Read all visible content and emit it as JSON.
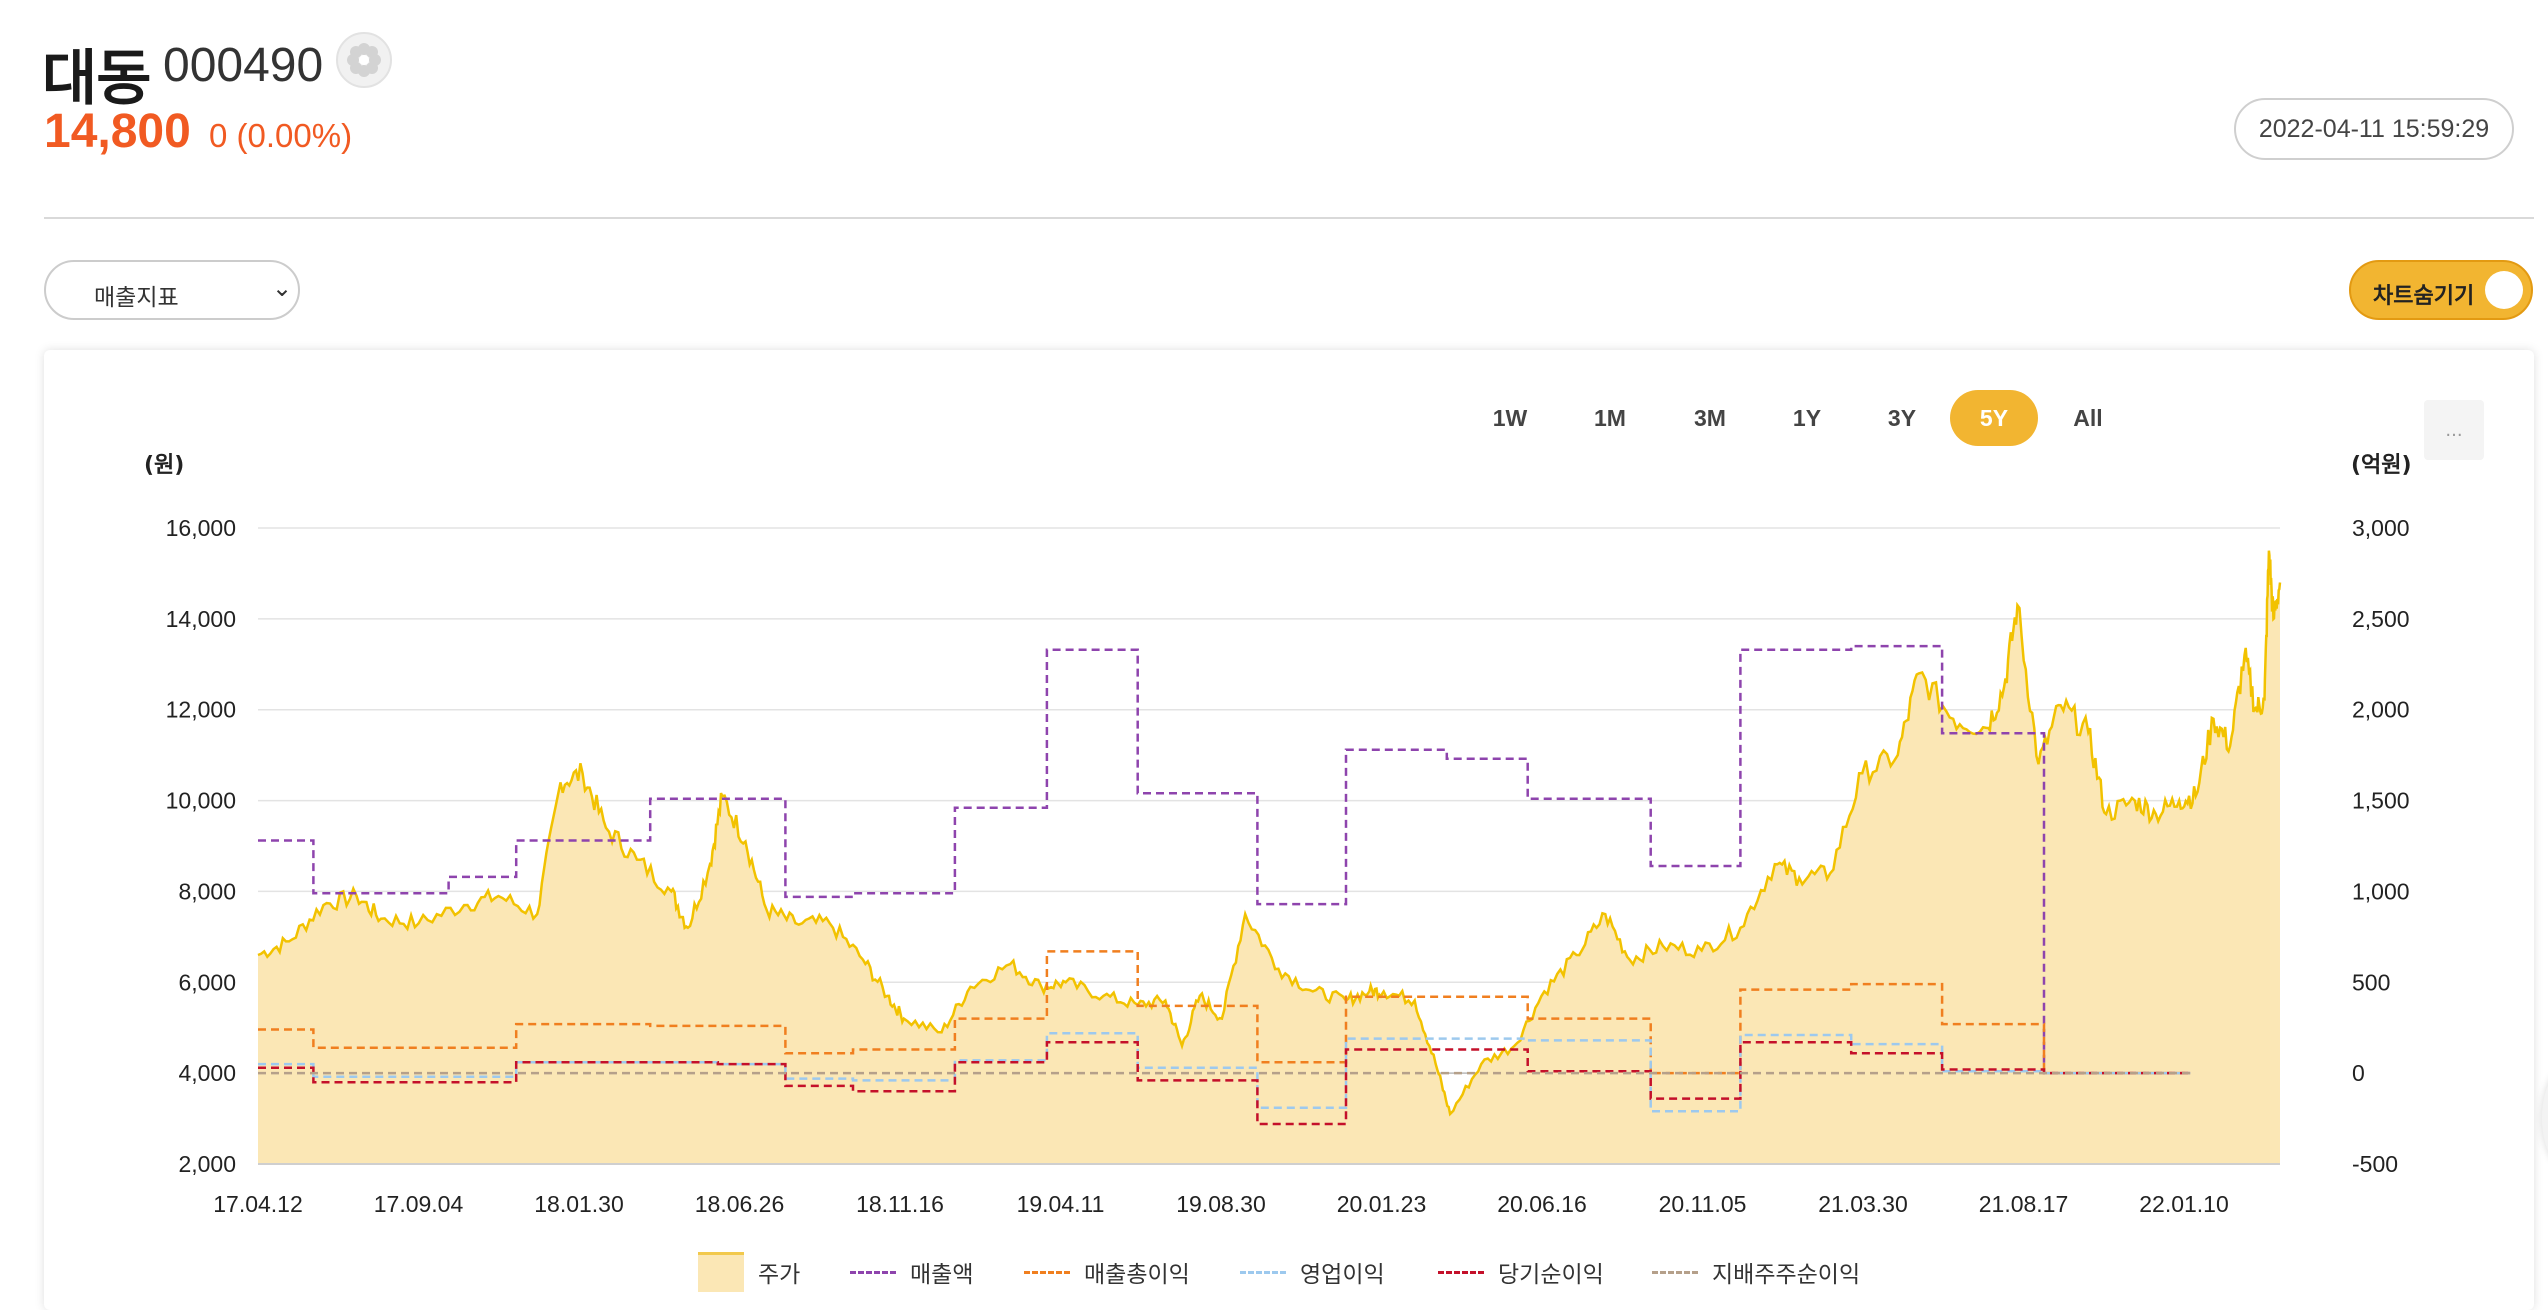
{
  "header": {
    "name": "대동",
    "code": "000490",
    "price": "14,800",
    "change": "0 (0.00%)",
    "timestamp": "2022-04-11 15:59:29"
  },
  "controls": {
    "metric_select": "매출지표",
    "toggle_label": "차트숨기기",
    "ranges": [
      "1W",
      "1M",
      "3M",
      "1Y",
      "3Y",
      "5Y",
      "All"
    ],
    "active_range": "5Y",
    "more_label": "..."
  },
  "colors": {
    "price_line": "#f2c200",
    "price_fill": "#fbe7b5",
    "revenue": "#8e44ad",
    "gross_profit": "#f07f1f",
    "operating_income": "#9dc9ee",
    "net_income": "#c4102a",
    "controlling_net_income": "#b5a08a",
    "accent": "#f2b531",
    "price_text": "#f15a22"
  },
  "chart_data": {
    "type": "line",
    "left_unit": "(원)",
    "right_unit": "(억원)",
    "y_left": {
      "ticks": [
        2000,
        4000,
        6000,
        8000,
        10000,
        12000,
        14000,
        16000
      ],
      "tick_labels": [
        "2,000",
        "4,000",
        "6,000",
        "8,000",
        "10,000",
        "12,000",
        "14,000",
        "16,000"
      ],
      "range": [
        2000,
        16000
      ]
    },
    "y_right": {
      "ticks": [
        -500,
        0,
        500,
        1000,
        1500,
        2000,
        2500,
        3000
      ],
      "tick_labels": [
        "-500",
        "0",
        "500",
        "1,000",
        "1,500",
        "2,000",
        "2,500",
        "3,000"
      ],
      "range": [
        -500,
        3000
      ]
    },
    "x_tick_labels": [
      "17.04.12",
      "17.09.04",
      "18.01.30",
      "18.06.26",
      "18.11.16",
      "19.04.11",
      "19.08.30",
      "20.01.23",
      "20.06.16",
      "20.11.05",
      "21.03.30",
      "21.08.17",
      "22.01.10"
    ],
    "x_range": [
      "2017-04-12",
      "2022-04-11"
    ],
    "legend": [
      "주가",
      "매출액",
      "매출총이익",
      "영업이익",
      "당기순이익",
      "지배주주순이익"
    ],
    "price_series": {
      "name": "주가",
      "points": [
        [
          "2017-04-12",
          6600
        ],
        [
          "2017-05-10",
          6900
        ],
        [
          "2017-06-10",
          7700
        ],
        [
          "2017-07-10",
          7900
        ],
        [
          "2017-08-01",
          7400
        ],
        [
          "2017-09-04",
          7300
        ],
        [
          "2017-10-15",
          7700
        ],
        [
          "2017-11-15",
          7900
        ],
        [
          "2017-12-20",
          7500
        ],
        [
          "2018-01-10",
          10400
        ],
        [
          "2018-01-30",
          10600
        ],
        [
          "2018-02-20",
          9400
        ],
        [
          "2018-03-20",
          8700
        ],
        [
          "2018-04-20",
          8000
        ],
        [
          "2018-05-05",
          7200
        ],
        [
          "2018-05-25",
          8600
        ],
        [
          "2018-06-05",
          10100
        ],
        [
          "2018-06-26",
          9100
        ],
        [
          "2018-07-15",
          7600
        ],
        [
          "2018-08-10",
          7300
        ],
        [
          "2018-09-10",
          7300
        ],
        [
          "2018-10-10",
          6500
        ],
        [
          "2018-11-01",
          5700
        ],
        [
          "2018-11-16",
          5200
        ],
        [
          "2018-12-20",
          4900
        ],
        [
          "2019-01-15",
          5900
        ],
        [
          "2019-02-20",
          6400
        ],
        [
          "2019-03-20",
          5900
        ],
        [
          "2019-04-11",
          6000
        ],
        [
          "2019-05-15",
          5700
        ],
        [
          "2019-06-15",
          5500
        ],
        [
          "2019-07-10",
          5600
        ],
        [
          "2019-07-25",
          4600
        ],
        [
          "2019-08-10",
          5700
        ],
        [
          "2019-08-30",
          5200
        ],
        [
          "2019-09-20",
          7500
        ],
        [
          "2019-10-20",
          6300
        ],
        [
          "2019-11-20",
          5800
        ],
        [
          "2019-12-20",
          5600
        ],
        [
          "2020-01-10",
          5800
        ],
        [
          "2020-01-23",
          5800
        ],
        [
          "2020-02-20",
          5600
        ],
        [
          "2020-03-10",
          4200
        ],
        [
          "2020-03-23",
          3100
        ],
        [
          "2020-04-20",
          4200
        ],
        [
          "2020-05-20",
          4600
        ],
        [
          "2020-06-16",
          5800
        ],
        [
          "2020-07-15",
          6600
        ],
        [
          "2020-08-10",
          7500
        ],
        [
          "2020-09-01",
          6500
        ],
        [
          "2020-10-01",
          6800
        ],
        [
          "2020-11-05",
          6700
        ],
        [
          "2020-12-10",
          7200
        ],
        [
          "2021-01-10",
          8600
        ],
        [
          "2021-02-01",
          8300
        ],
        [
          "2021-03-01",
          8400
        ],
        [
          "2021-03-30",
          10600
        ],
        [
          "2021-05-01",
          11000
        ],
        [
          "2021-05-20",
          12800
        ],
        [
          "2021-06-20",
          11800
        ],
        [
          "2021-07-20",
          11600
        ],
        [
          "2021-08-05",
          12500
        ],
        [
          "2021-08-17",
          14300
        ],
        [
          "2021-09-05",
          10800
        ],
        [
          "2021-09-25",
          12100
        ],
        [
          "2021-10-20",
          11500
        ],
        [
          "2021-11-05",
          9700
        ],
        [
          "2021-12-01",
          10000
        ],
        [
          "2021-12-20",
          9700
        ],
        [
          "2022-01-10",
          10000
        ],
        [
          "2022-01-25",
          10100
        ],
        [
          "2022-02-10",
          11800
        ],
        [
          "2022-02-25",
          11200
        ],
        [
          "2022-03-10",
          13200
        ],
        [
          "2022-03-20",
          12000
        ],
        [
          "2022-03-28",
          12200
        ],
        [
          "2022-04-01",
          15500
        ],
        [
          "2022-04-05",
          14000
        ],
        [
          "2022-04-11",
          14800
        ]
      ]
    },
    "step_series": [
      {
        "name": "매출액",
        "key": "revenue",
        "steps": [
          [
            "2017-04-12",
            1280
          ],
          [
            "2017-06-01",
            990
          ],
          [
            "2017-08-01",
            990
          ],
          [
            "2017-10-01",
            1080
          ],
          [
            "2017-12-01",
            1280
          ],
          [
            "2018-02-01",
            1280
          ],
          [
            "2018-04-01",
            1510
          ],
          [
            "2018-06-01",
            1510
          ],
          [
            "2018-08-01",
            970
          ],
          [
            "2018-10-01",
            990
          ],
          [
            "2019-01-01",
            1460
          ],
          [
            "2019-03-25",
            2330
          ],
          [
            "2019-06-15",
            1540
          ],
          [
            "2019-10-01",
            930
          ],
          [
            "2019-12-20",
            1780
          ],
          [
            "2020-03-20",
            1730
          ],
          [
            "2020-06-01",
            1510
          ],
          [
            "2020-09-20",
            1140
          ],
          [
            "2020-12-10",
            2330
          ],
          [
            "2021-03-20",
            2350
          ],
          [
            "2021-06-10",
            1870
          ],
          [
            "2021-09-10",
            0
          ],
          [
            "2022-01-20",
            0
          ]
        ]
      },
      {
        "name": "매출총이익",
        "key": "gross_profit",
        "steps": [
          [
            "2017-04-12",
            240
          ],
          [
            "2017-06-01",
            140
          ],
          [
            "2017-10-01",
            140
          ],
          [
            "2017-12-01",
            270
          ],
          [
            "2018-04-01",
            260
          ],
          [
            "2018-06-01",
            260
          ],
          [
            "2018-08-01",
            110
          ],
          [
            "2018-10-01",
            130
          ],
          [
            "2019-01-01",
            300
          ],
          [
            "2019-03-25",
            670
          ],
          [
            "2019-06-15",
            370
          ],
          [
            "2019-10-01",
            60
          ],
          [
            "2019-12-20",
            420
          ],
          [
            "2020-06-01",
            300
          ],
          [
            "2020-09-20",
            0
          ],
          [
            "2020-12-10",
            460
          ],
          [
            "2021-03-20",
            490
          ],
          [
            "2021-06-10",
            270
          ],
          [
            "2021-09-10",
            0
          ],
          [
            "2022-01-20",
            0
          ]
        ]
      },
      {
        "name": "영업이익",
        "key": "operating_income",
        "steps": [
          [
            "2017-04-12",
            50
          ],
          [
            "2017-06-01",
            -20
          ],
          [
            "2017-12-01",
            60
          ],
          [
            "2018-06-01",
            50
          ],
          [
            "2018-08-01",
            -30
          ],
          [
            "2018-10-01",
            -40
          ],
          [
            "2019-01-01",
            70
          ],
          [
            "2019-03-25",
            220
          ],
          [
            "2019-06-15",
            30
          ],
          [
            "2019-10-01",
            -190
          ],
          [
            "2019-12-20",
            190
          ],
          [
            "2020-06-01",
            180
          ],
          [
            "2020-09-20",
            -210
          ],
          [
            "2020-12-10",
            210
          ],
          [
            "2021-03-20",
            160
          ],
          [
            "2021-06-10",
            10
          ],
          [
            "2021-09-10",
            0
          ],
          [
            "2022-01-20",
            0
          ]
        ]
      },
      {
        "name": "당기순이익",
        "key": "net_income",
        "steps": [
          [
            "2017-04-12",
            30
          ],
          [
            "2017-06-01",
            -50
          ],
          [
            "2017-12-01",
            60
          ],
          [
            "2018-06-01",
            50
          ],
          [
            "2018-08-01",
            -70
          ],
          [
            "2018-10-01",
            -100
          ],
          [
            "2019-01-01",
            60
          ],
          [
            "2019-03-25",
            170
          ],
          [
            "2019-06-15",
            -40
          ],
          [
            "2019-10-01",
            -280
          ],
          [
            "2019-12-20",
            130
          ],
          [
            "2020-06-01",
            10
          ],
          [
            "2020-09-20",
            -140
          ],
          [
            "2020-12-10",
            170
          ],
          [
            "2021-03-20",
            110
          ],
          [
            "2021-06-10",
            20
          ],
          [
            "2021-09-10",
            0
          ],
          [
            "2022-01-20",
            0
          ]
        ]
      },
      {
        "name": "지배주주순이익",
        "key": "controlling_net_income",
        "steps": [
          [
            "2017-04-12",
            0
          ],
          [
            "2022-01-20",
            0
          ]
        ]
      }
    ]
  }
}
